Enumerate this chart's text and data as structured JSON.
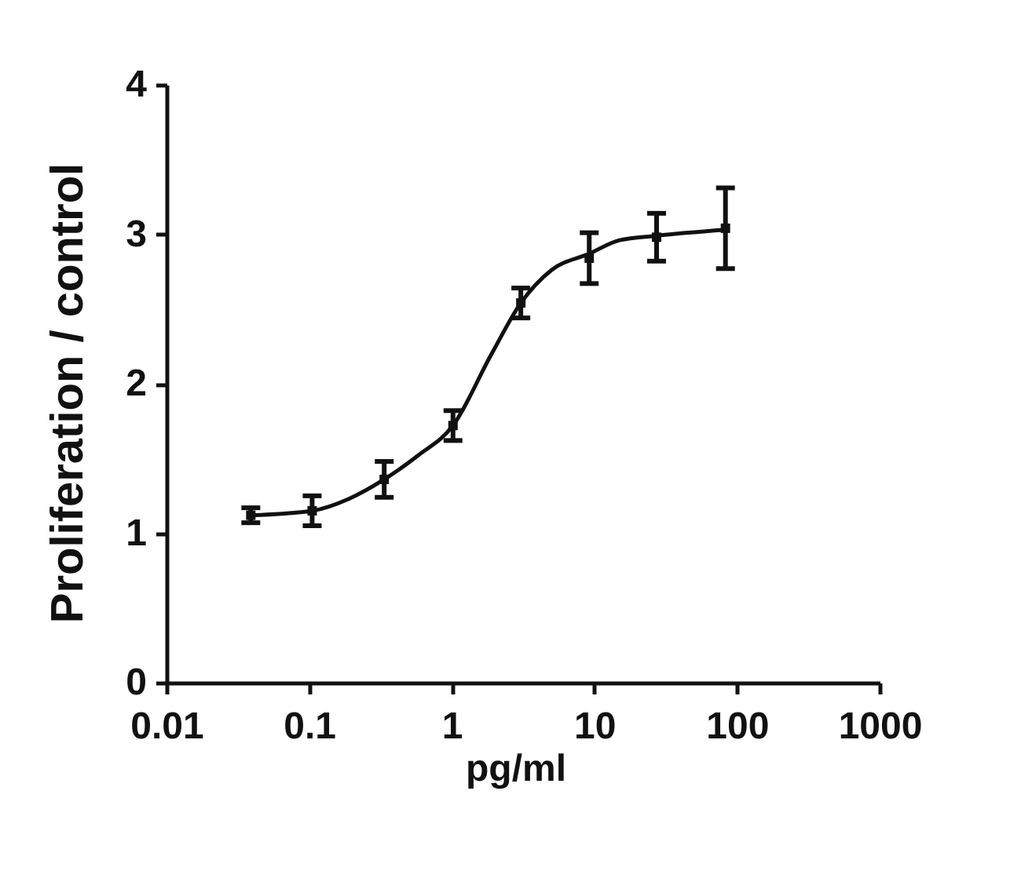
{
  "chart_data": {
    "type": "scatter",
    "xlabel": "pg/ml",
    "ylabel": "Proliferation / control",
    "log": "x",
    "xlim": [
      0.01,
      1000
    ],
    "xticks": [
      0.01,
      0.1,
      1,
      10,
      100,
      1000
    ],
    "ylim": [
      0,
      4
    ],
    "yticks": [
      0,
      1,
      2,
      3,
      4
    ],
    "series": [
      {
        "type": "line",
        "color": "#111111",
        "line_style": "solid",
        "marker": "none",
        "x": [
          0.039,
          0.105,
          0.19,
          0.336,
          0.58,
          1.02,
          1.88,
          3.05,
          5,
          9.2,
          15,
          27.3,
          83
        ],
        "values": [
          1.12,
          1.15,
          1.23,
          1.36,
          1.52,
          1.72,
          2.19,
          2.54,
          2.76,
          2.87,
          2.96,
          2.99,
          3.03
        ]
      },
      {
        "color": "#111111",
        "marker": "square",
        "x": [
          0.039,
          0.105,
          0.336,
          1.02,
          3.05,
          9.2,
          27.3,
          83
        ],
        "values": [
          1.12,
          1.15,
          1.36,
          1.72,
          2.54,
          2.84,
          2.98,
          3.04
        ],
        "errors": [
          0.05,
          0.1,
          0.12,
          0.1,
          0.1,
          0.17,
          0.16,
          0.27
        ]
      }
    ]
  }
}
